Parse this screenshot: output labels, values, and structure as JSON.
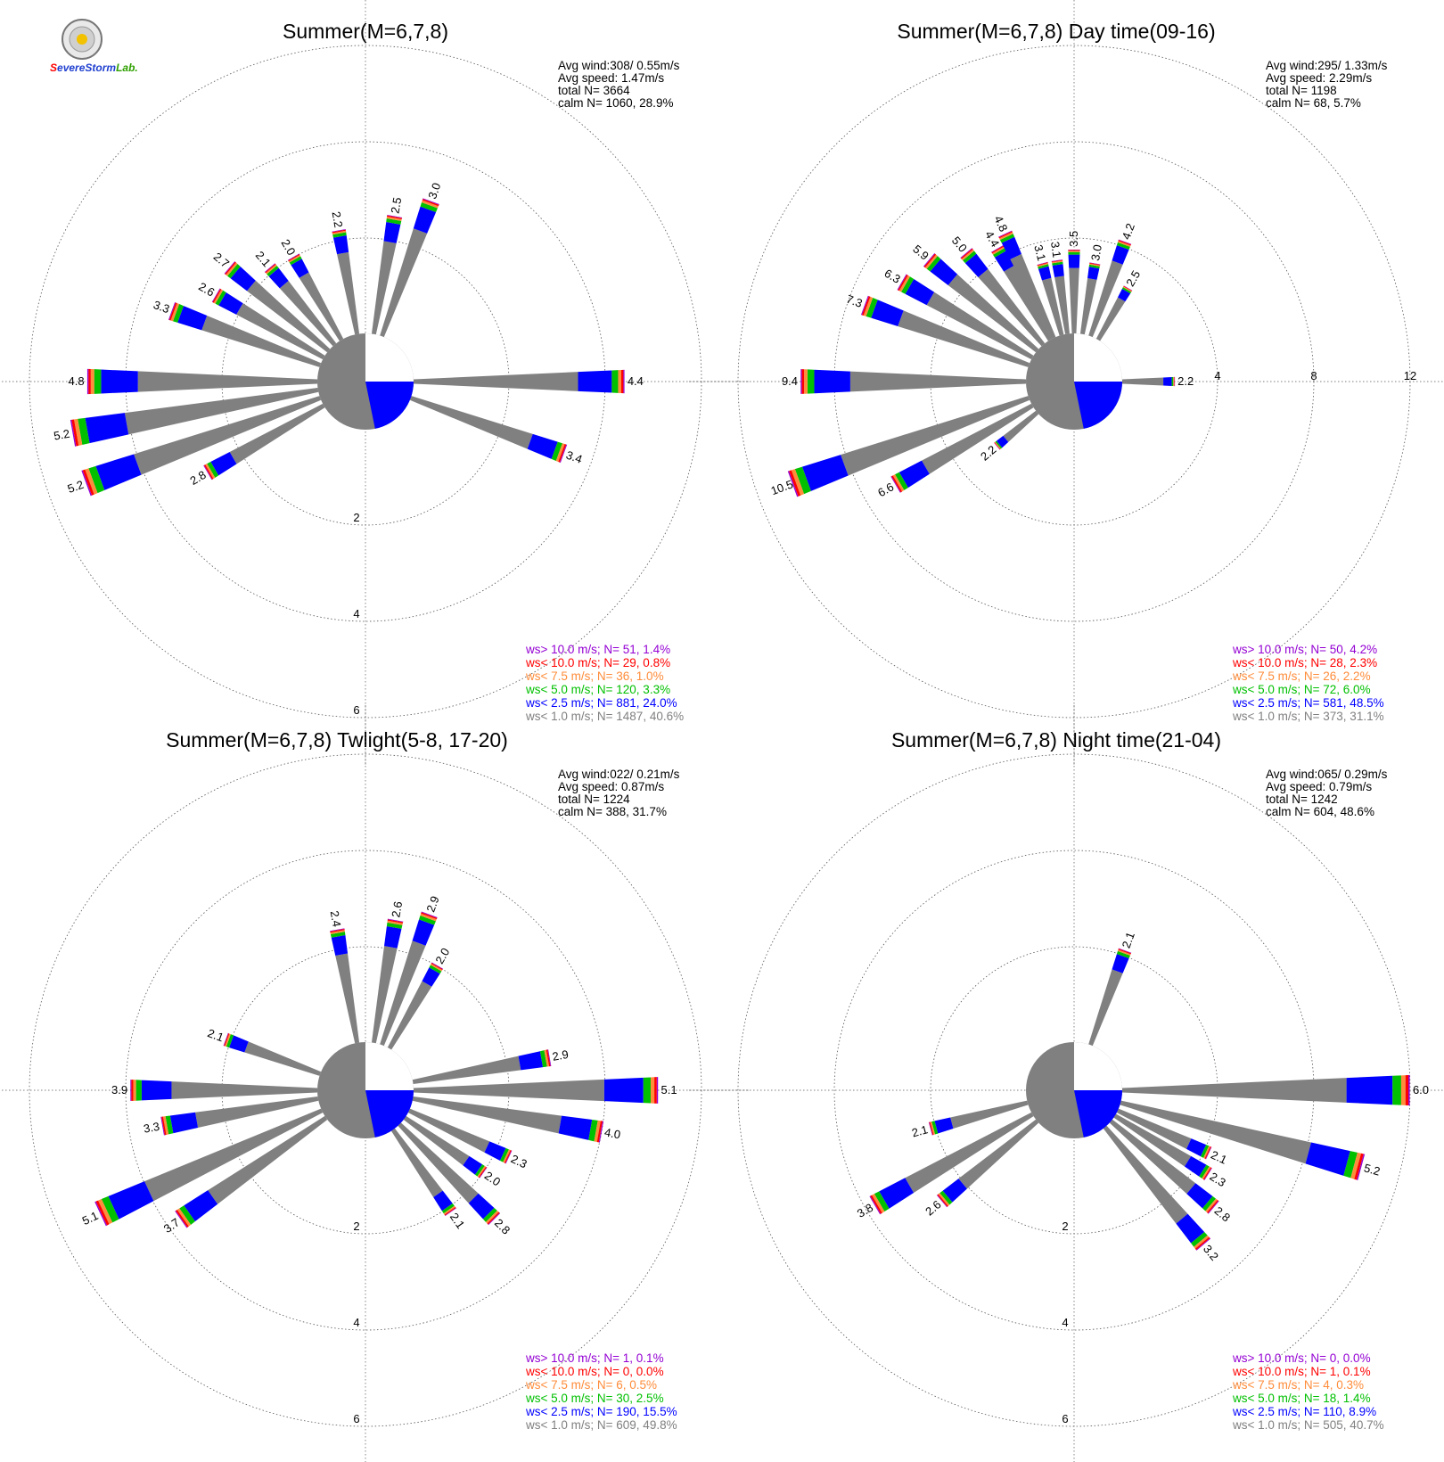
{
  "logo": {
    "text_parts": [
      {
        "t": "S",
        "color": "#ff0000"
      },
      {
        "t": "evere",
        "color": "#1f3fd0"
      },
      {
        "t": "Storm",
        "color": "#1f3fd0"
      },
      {
        "t": "Lab.",
        "color": "#2fa000"
      }
    ]
  },
  "colors": {
    "calm": "#808080",
    "lt1": "#808080",
    "lt2_5": "#0000ff",
    "lt5": "#00c000",
    "lt7_5": "#ff8c3a",
    "lt10": "#ff0000",
    "gt10": "#9400d3"
  },
  "chart_data": [
    {
      "type": "polar-bar",
      "title": "Summer(M=6,7,8)",
      "stats": [
        "Avg wind:308/ 0.55m/s",
        "Avg speed: 1.47m/s",
        "total N=       3664",
        "calm N=   1060,  28.9%"
      ],
      "legend": [
        {
          "text": "ws> 10.0 m/s; N=    51,  1.4%",
          "color": "#9400d3"
        },
        {
          "text": "ws< 10.0 m/s; N=    29,  0.8%",
          "color": "#ff0000"
        },
        {
          "text": "ws<  7.5 m/s; N=    36,  1.0%",
          "color": "#ff8c3a"
        },
        {
          "text": "ws<  5.0 m/s; N=   120,  3.3%",
          "color": "#00c000"
        },
        {
          "text": "ws<  2.5 m/s; N=   881, 24.0%",
          "color": "#0000ff"
        },
        {
          "text": "ws<  1.0 m/s; N=  1487, 40.6%",
          "color": "#808080"
        }
      ],
      "radial_ticks": [
        "2",
        "4",
        "6"
      ],
      "ticks_on_right": false,
      "max_ring": 6,
      "bar_labels": [
        {
          "deg": 90,
          "text": "4.4"
        },
        {
          "deg": 110,
          "text": "3.4"
        },
        {
          "deg": 240,
          "text": "2.8"
        },
        {
          "deg": 250,
          "text": "5.2"
        },
        {
          "deg": 260,
          "text": "5.2"
        },
        {
          "deg": 270,
          "text": "4.8"
        },
        {
          "deg": 290,
          "text": "3.3"
        },
        {
          "deg": 300,
          "text": "2.6"
        },
        {
          "deg": 310,
          "text": "2.7"
        },
        {
          "deg": 320,
          "text": "2.1"
        },
        {
          "deg": 330,
          "text": "2.0"
        },
        {
          "deg": 350,
          "text": "2.2"
        },
        {
          "deg": 10,
          "text": "2.5"
        },
        {
          "deg": 20,
          "text": "3.0"
        }
      ]
    },
    {
      "type": "polar-bar",
      "title": "Summer(M=6,7,8) Day time(09-16)",
      "stats": [
        "Avg wind:295/ 1.33m/s",
        "Avg speed: 2.29m/s",
        "total N=       1198",
        "calm N=     68,   5.7%"
      ],
      "legend": [
        {
          "text": "ws> 10.0 m/s; N=    50,  4.2%",
          "color": "#9400d3"
        },
        {
          "text": "ws< 10.0 m/s; N=    28,  2.3%",
          "color": "#ff0000"
        },
        {
          "text": "ws<  7.5 m/s; N=    26,  2.2%",
          "color": "#ff8c3a"
        },
        {
          "text": "ws<  5.0 m/s; N=    72,  6.0%",
          "color": "#00c000"
        },
        {
          "text": "ws<  2.5 m/s; N=   581, 48.5%",
          "color": "#0000ff"
        },
        {
          "text": "ws<  1.0 m/s; N=   373, 31.1%",
          "color": "#808080"
        }
      ],
      "radial_ticks": [
        "4",
        "8",
        "12"
      ],
      "ticks_on_right": true,
      "max_ring": 12,
      "bar_labels": [
        {
          "deg": 90,
          "text": "2.2"
        },
        {
          "deg": 230,
          "text": "2.2"
        },
        {
          "deg": 240,
          "text": "6.6"
        },
        {
          "deg": 250,
          "text": "10.5"
        },
        {
          "deg": 270,
          "text": "9.4"
        },
        {
          "deg": 290,
          "text": "7.3"
        },
        {
          "deg": 300,
          "text": "6.3"
        },
        {
          "deg": 310,
          "text": "5.9"
        },
        {
          "deg": 320,
          "text": "5.0"
        },
        {
          "deg": 330,
          "text": "4.4"
        },
        {
          "deg": 335,
          "text": "4.8"
        },
        {
          "deg": 345,
          "text": "3.1"
        },
        {
          "deg": 352,
          "text": "3.1"
        },
        {
          "deg": 0,
          "text": "3.5"
        },
        {
          "deg": 10,
          "text": "3.0"
        },
        {
          "deg": 20,
          "text": "4.2"
        },
        {
          "deg": 30,
          "text": "2.5"
        }
      ]
    },
    {
      "type": "polar-bar",
      "title": "Summer(M=6,7,8) Twlight(5-8, 17-20)",
      "stats": [
        "Avg wind:022/ 0.21m/s",
        "Avg speed: 0.87m/s",
        "total N=       1224",
        "calm N=    388,  31.7%"
      ],
      "legend": [
        {
          "text": "ws> 10.0 m/s; N=     1,  0.1%",
          "color": "#9400d3"
        },
        {
          "text": "ws< 10.0 m/s; N=     0,  0.0%",
          "color": "#ff0000"
        },
        {
          "text": "ws<  7.5 m/s; N=     6,  0.5%",
          "color": "#ff8c3a"
        },
        {
          "text": "ws<  5.0 m/s; N=    30,  2.5%",
          "color": "#00c000"
        },
        {
          "text": "ws<  2.5 m/s; N=   190, 15.5%",
          "color": "#0000ff"
        },
        {
          "text": "ws<  1.0 m/s; N=   609, 49.8%",
          "color": "#808080"
        }
      ],
      "radial_ticks": [
        "2",
        "4",
        "6"
      ],
      "ticks_on_right": false,
      "max_ring": 6,
      "bar_labels": [
        {
          "deg": 80,
          "text": "2.9"
        },
        {
          "deg": 90,
          "text": "5.1"
        },
        {
          "deg": 100,
          "text": "4.0"
        },
        {
          "deg": 115,
          "text": "2.3"
        },
        {
          "deg": 125,
          "text": "2.0"
        },
        {
          "deg": 135,
          "text": "2.8"
        },
        {
          "deg": 145,
          "text": "2.1"
        },
        {
          "deg": 235,
          "text": "3.7"
        },
        {
          "deg": 245,
          "text": "5.1"
        },
        {
          "deg": 260,
          "text": "3.3"
        },
        {
          "deg": 270,
          "text": "3.9"
        },
        {
          "deg": 290,
          "text": "2.1"
        },
        {
          "deg": 350,
          "text": "2.4"
        },
        {
          "deg": 10,
          "text": "2.6"
        },
        {
          "deg": 20,
          "text": "2.9"
        },
        {
          "deg": 30,
          "text": "2.0"
        }
      ]
    },
    {
      "type": "polar-bar",
      "title": "Summer(M=6,7,8) Night time(21-04)",
      "stats": [
        "Avg wind:065/ 0.29m/s",
        "Avg speed: 0.79m/s",
        "total N=       1242",
        "calm N=    604,  48.6%"
      ],
      "legend": [
        {
          "text": "ws> 10.0 m/s; N=     0,  0.0%",
          "color": "#9400d3"
        },
        {
          "text": "ws< 10.0 m/s; N=     1,  0.1%",
          "color": "#ff0000"
        },
        {
          "text": "ws<  7.5 m/s; N=     4,  0.3%",
          "color": "#ff8c3a"
        },
        {
          "text": "ws<  5.0 m/s; N=    18,  1.4%",
          "color": "#00c000"
        },
        {
          "text": "ws<  2.5 m/s; N=   110,  8.9%",
          "color": "#0000ff"
        },
        {
          "text": "ws<  1.0 m/s; N=   505, 40.7%",
          "color": "#808080"
        }
      ],
      "radial_ticks": [
        "2",
        "4",
        "6"
      ],
      "ticks_on_right": false,
      "max_ring": 6,
      "bar_labels": [
        {
          "deg": 90,
          "text": "6.0"
        },
        {
          "deg": 105,
          "text": "5.2"
        },
        {
          "deg": 115,
          "text": "2.1"
        },
        {
          "deg": 122,
          "text": "2.3"
        },
        {
          "deg": 130,
          "text": "2.8"
        },
        {
          "deg": 140,
          "text": "3.2"
        },
        {
          "deg": 230,
          "text": "2.6"
        },
        {
          "deg": 240,
          "text": "3.8"
        },
        {
          "deg": 255,
          "text": "2.1"
        },
        {
          "deg": 20,
          "text": "2.1"
        }
      ]
    }
  ]
}
